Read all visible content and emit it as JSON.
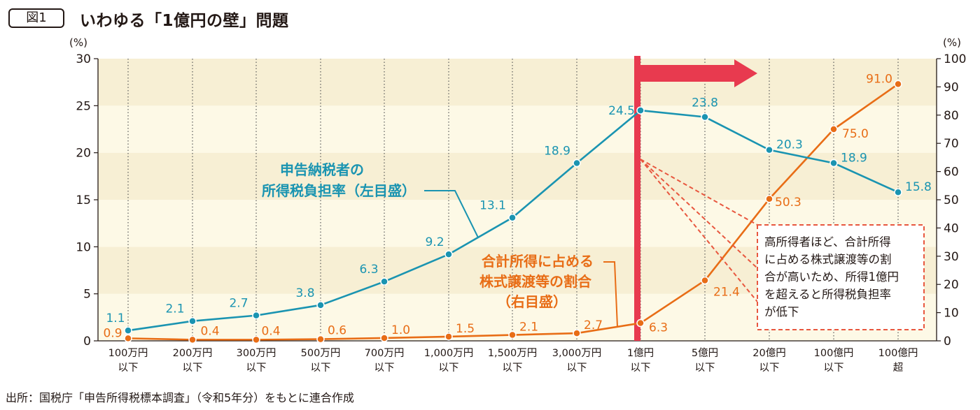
{
  "header": {
    "figure_label": "図1",
    "title": "いわゆる「1億円の壁」問題"
  },
  "source": "出所：国税庁「申告所得税標本調査」（令和5年分）をもとに連合作成",
  "chart_data": {
    "type": "line",
    "categories": [
      [
        "100万円",
        "以下"
      ],
      [
        "200万円",
        "以下"
      ],
      [
        "300万円",
        "以下"
      ],
      [
        "500万円",
        "以下"
      ],
      [
        "700万円",
        "以下"
      ],
      [
        "1,000万円",
        "以下"
      ],
      [
        "1,500万円",
        "以下"
      ],
      [
        "3,000万円",
        "以下"
      ],
      [
        "1億円",
        "以下"
      ],
      [
        "5億円",
        "以下"
      ],
      [
        "20億円",
        "以下"
      ],
      [
        "100億円",
        "以下"
      ],
      [
        "100億円",
        "超"
      ]
    ],
    "left_axis": {
      "unit": "(%)",
      "ylim": [
        0,
        30
      ],
      "ticks": [
        0,
        5,
        10,
        15,
        20,
        25,
        30
      ]
    },
    "right_axis": {
      "unit": "(%)",
      "ylim": [
        0,
        100
      ],
      "ticks": [
        0,
        10,
        20,
        30,
        40,
        50,
        60,
        70,
        80,
        90,
        100
      ]
    },
    "series": [
      {
        "name": "申告納税者の所得税負担率（左目盛）",
        "label_lines": [
          "申告納税者の",
          "所得税負担率（左目盛）"
        ],
        "axis": "left",
        "color": "#1a94b1",
        "values": [
          1.1,
          2.1,
          2.7,
          3.8,
          6.3,
          9.2,
          13.1,
          18.9,
          24.5,
          23.8,
          20.3,
          18.9,
          15.8
        ],
        "labels": [
          "1.1",
          "2.1",
          "2.7",
          "3.8",
          "6.3",
          "9.2",
          "13.1",
          "18.9",
          "24.5",
          "23.8",
          "20.3",
          "18.9",
          "15.8"
        ]
      },
      {
        "name": "合計所得に占める株式譲渡等の割合（右目盛）",
        "label_lines": [
          "合計所得に占める",
          "株式譲渡等の割合",
          "（右目盛）"
        ],
        "axis": "right",
        "color": "#e86d16",
        "values": [
          0.9,
          0.4,
          0.4,
          0.6,
          1.0,
          1.5,
          2.1,
          2.7,
          6.3,
          21.4,
          50.3,
          75.0,
          91.0
        ],
        "labels": [
          "0.9",
          "0.4",
          "0.4",
          "0.6",
          "1.0",
          "1.5",
          "2.1",
          "2.7",
          "6.3",
          "21.4",
          "50.3",
          "75.0",
          "91.0"
        ]
      }
    ],
    "grid": "vertical dotted lines, alternating horizontal bands",
    "marker": {
      "category_index": 8,
      "color": "#e83a4f"
    },
    "note_lines": [
      "高所得者ほど、合計所得",
      "に占める株式譲渡等の割",
      "合が高いため、所得1億円",
      "を超えると所得税負担率",
      "が低下"
    ]
  }
}
